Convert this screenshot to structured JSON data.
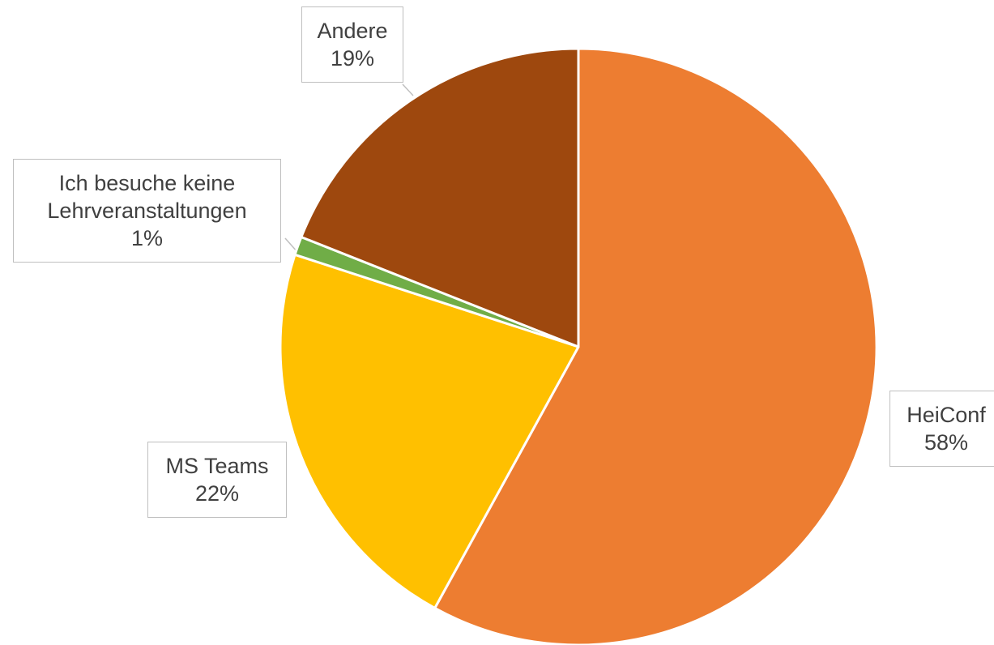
{
  "chart_data": {
    "type": "pie",
    "categories": [
      "HeiConf",
      "MS Teams",
      "Ich besuche keine Lehrveranstaltungen",
      "Andere"
    ],
    "values": [
      58,
      22,
      1,
      19
    ],
    "value_labels": [
      "58%",
      "22%",
      "1%",
      "19%"
    ],
    "colors": [
      "#ED7D31",
      "#FFC000",
      "#70AD47",
      "#9E480E"
    ]
  }
}
